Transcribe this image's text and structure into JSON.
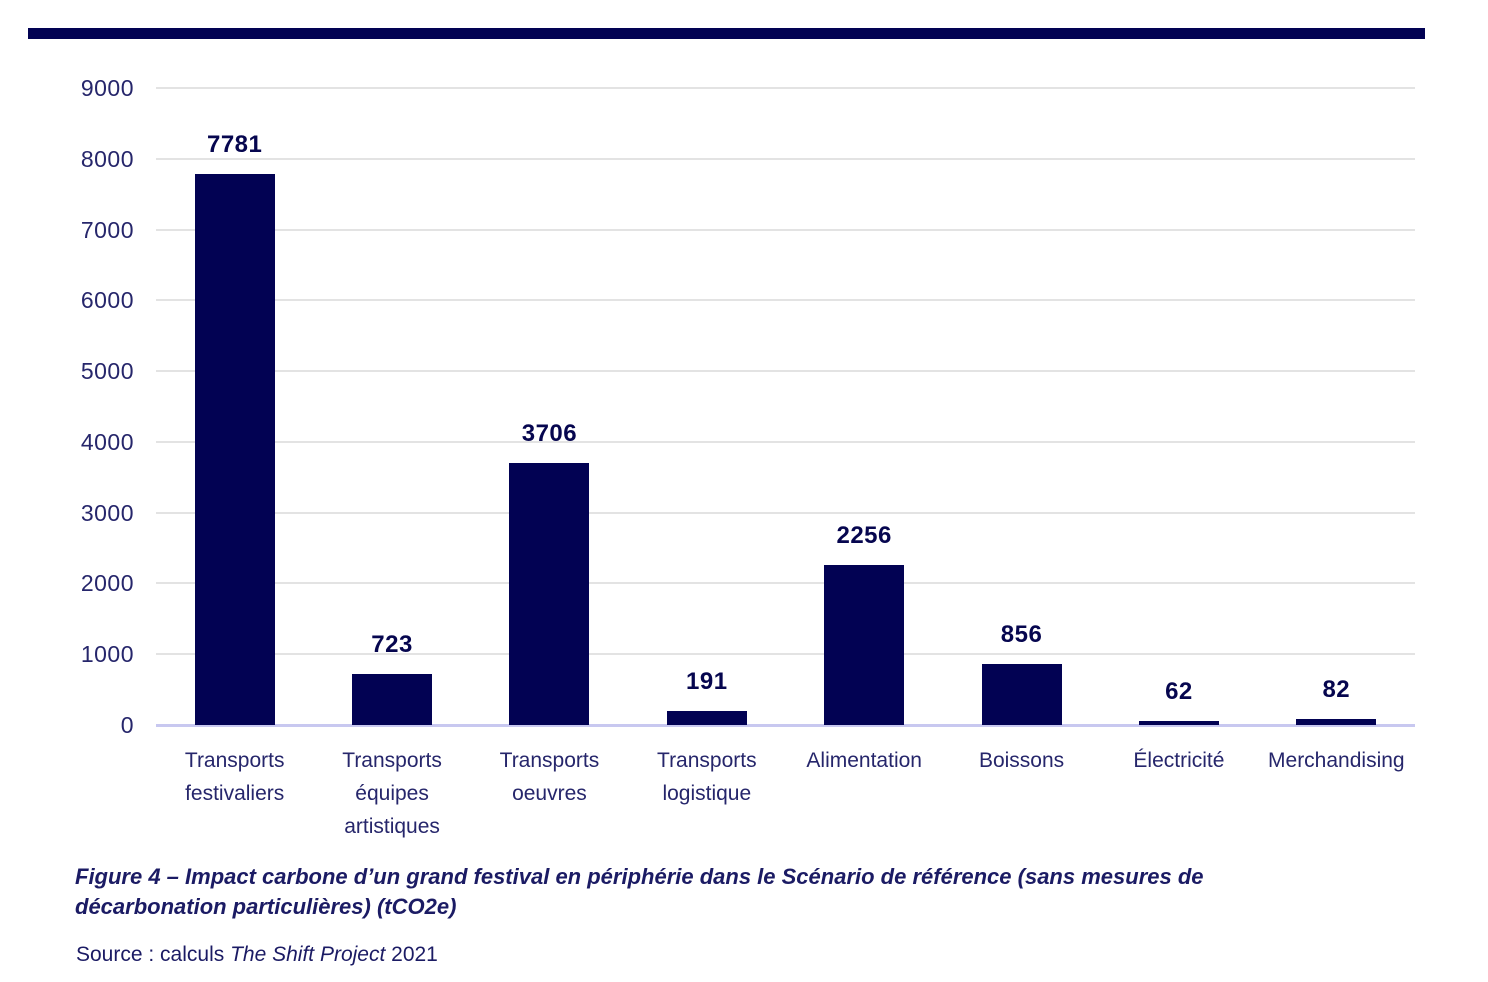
{
  "top_rule": {
    "color": "#020253"
  },
  "chart_data": {
    "type": "bar",
    "title": "",
    "categories": [
      "Transports festivaliers",
      "Transports équipes artistiques",
      "Transports oeuvres",
      "Transports logistique",
      "Alimentation",
      "Boissons",
      "Électricité",
      "Merchandising"
    ],
    "values": [
      7781,
      723,
      3706,
      191,
      2256,
      856,
      62,
      82
    ],
    "value_labels": [
      "7781",
      "723",
      "3706",
      "191",
      "2256",
      "856",
      "62",
      "82"
    ],
    "xlabel": "",
    "ylabel": "",
    "ylim": [
      0,
      9000
    ],
    "ytick_step": 1000,
    "ytick_labels": [
      "0",
      "1000",
      "2000",
      "3000",
      "4000",
      "5000",
      "6000",
      "7000",
      "8000",
      "9000"
    ],
    "grid": "horizontal",
    "legend_position": "none",
    "colors": {
      "bar": "#020253",
      "value_label": "#06064f",
      "tick_label": "#26266b",
      "category_label": "#26266b",
      "gridline": "#e3e3e3",
      "zero_line": "#c8c8f0"
    }
  },
  "caption": {
    "text": "Figure 4 – Impact carbone d’un grand festival en périphérie dans le Scénario de référence (sans mesures de\ndécarbonation particulières) (tCO2e)",
    "color": "#1b1b64"
  },
  "source": {
    "prefix": "Source : calculs ",
    "italic": "The Shift Project",
    "suffix": " 2021",
    "color": "#1b1b64"
  }
}
